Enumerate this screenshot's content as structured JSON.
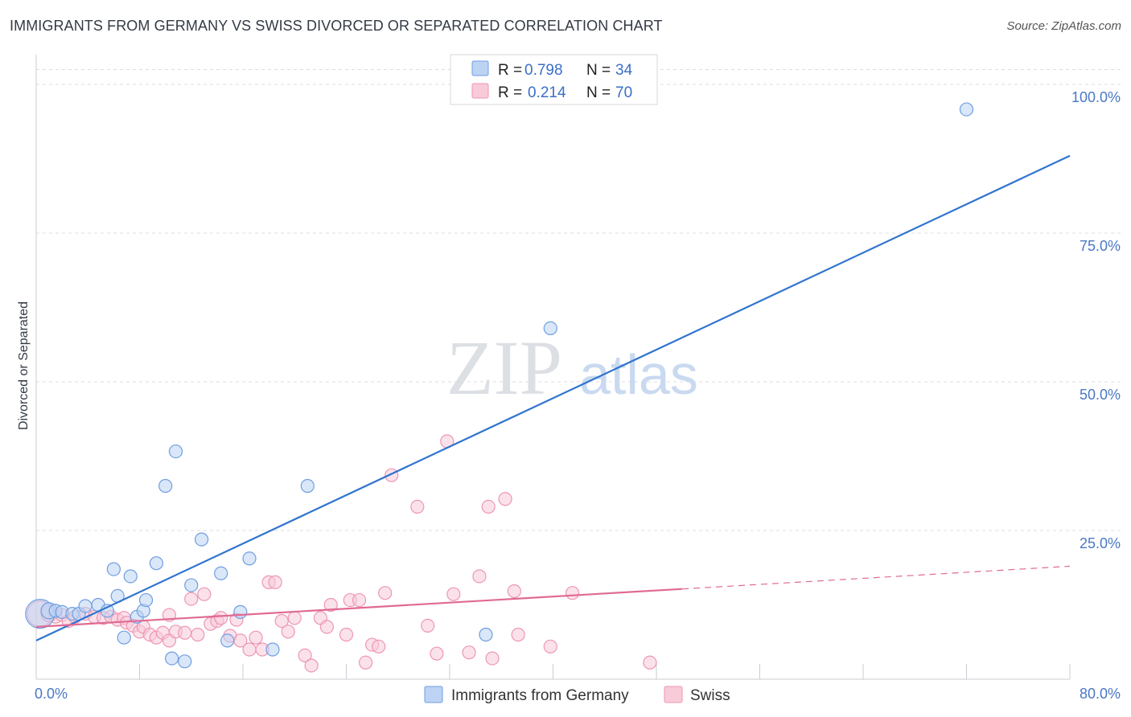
{
  "title": "IMMIGRANTS FROM GERMANY VS SWISS DIVORCED OR SEPARATED CORRELATION CHART",
  "source": "Source: ZipAtlas.com",
  "watermark": {
    "zip": "ZIP",
    "atlas": "atlas"
  },
  "colors": {
    "germany": "#6f9ee0",
    "germany_fill": "#bcd3f4",
    "germany_line": "#2f74d0",
    "swiss": "#ee96b2",
    "swiss_fill": "#f8cbd9",
    "swiss_line": "#e06a92",
    "grid": "#d9dde3",
    "tick_text": "#4a78c4"
  },
  "legend": {
    "r_label": "R =",
    "n_label": "N =",
    "germany": {
      "r": "0.798",
      "n": "34"
    },
    "swiss": {
      "r": "0.214",
      "n": "70"
    }
  },
  "chart_data": {
    "type": "scatter",
    "title": "IMMIGRANTS FROM GERMANY VS SWISS DIVORCED OR SEPARATED CORRELATION CHART",
    "xlabel": "",
    "ylabel": "Divorced or Separated",
    "xlim": [
      0,
      80
    ],
    "ylim": [
      0,
      105
    ],
    "x_tick_labels": [
      "0.0%",
      "80.0%"
    ],
    "y_ticks": [
      25,
      50,
      75,
      100
    ],
    "y_tick_labels": [
      "25.0%",
      "50.0%",
      "75.0%",
      "100.0%"
    ],
    "grid": true,
    "legend_position": "top-center",
    "series": [
      {
        "name": "Immigrants from Germany",
        "r": 0.798,
        "n": 34,
        "trend": {
          "x0": 0,
          "y0": 6.5,
          "x1": 80,
          "y1": 88.0,
          "dashed_from": null
        },
        "points": [
          [
            0.3,
            11.0,
            18
          ],
          [
            1.0,
            11.5,
            10
          ],
          [
            1.5,
            11.5,
            8
          ],
          [
            2.0,
            11.3,
            8
          ],
          [
            2.8,
            11.0,
            8
          ],
          [
            3.3,
            11.0,
            8
          ],
          [
            3.8,
            12.3,
            8
          ],
          [
            4.8,
            12.5,
            8
          ],
          [
            5.5,
            11.5,
            8
          ],
          [
            6.0,
            18.5,
            8
          ],
          [
            6.3,
            14.0,
            8
          ],
          [
            6.8,
            7.0,
            8
          ],
          [
            7.3,
            17.3,
            8
          ],
          [
            7.8,
            10.5,
            8
          ],
          [
            8.3,
            11.5,
            8
          ],
          [
            8.5,
            13.3,
            8
          ],
          [
            9.3,
            19.5,
            8
          ],
          [
            10.0,
            32.5,
            8
          ],
          [
            10.5,
            3.5,
            8
          ],
          [
            10.8,
            38.3,
            8
          ],
          [
            11.5,
            3.0,
            8
          ],
          [
            12.0,
            15.8,
            8
          ],
          [
            12.8,
            23.5,
            8
          ],
          [
            14.3,
            17.8,
            8
          ],
          [
            14.8,
            6.5,
            8
          ],
          [
            15.8,
            11.3,
            8
          ],
          [
            16.5,
            20.3,
            8
          ],
          [
            18.3,
            5.0,
            8
          ],
          [
            21.0,
            32.5,
            8
          ],
          [
            34.8,
            7.5,
            8
          ],
          [
            39.8,
            59.0,
            8
          ],
          [
            72.0,
            95.8,
            8
          ]
        ]
      },
      {
        "name": "Swiss",
        "r": 0.214,
        "n": 70,
        "trend": {
          "x0": 0,
          "y0": 8.8,
          "x1": 80,
          "y1": 19.0,
          "solid_to": 50
        },
        "points": [
          [
            0.3,
            11.0,
            16
          ],
          [
            1.0,
            11.0,
            10
          ],
          [
            1.5,
            10.5,
            8
          ],
          [
            2.0,
            10.8,
            8
          ],
          [
            2.5,
            9.8,
            8
          ],
          [
            3.0,
            10.5,
            8
          ],
          [
            3.8,
            11.0,
            8
          ],
          [
            4.5,
            10.5,
            8
          ],
          [
            5.2,
            10.3,
            8
          ],
          [
            5.8,
            10.5,
            8
          ],
          [
            6.3,
            10.0,
            8
          ],
          [
            6.8,
            10.3,
            8
          ],
          [
            7.0,
            9.5,
            8
          ],
          [
            7.5,
            9.0,
            8
          ],
          [
            8.0,
            8.0,
            8
          ],
          [
            8.3,
            8.8,
            8
          ],
          [
            8.8,
            7.5,
            8
          ],
          [
            9.3,
            7.0,
            8
          ],
          [
            9.8,
            7.8,
            8
          ],
          [
            10.3,
            6.5,
            8
          ],
          [
            10.3,
            10.8,
            8
          ],
          [
            10.8,
            8.0,
            8
          ],
          [
            11.5,
            7.8,
            8
          ],
          [
            12.0,
            13.5,
            8
          ],
          [
            12.5,
            7.5,
            8
          ],
          [
            13.0,
            14.3,
            8
          ],
          [
            13.5,
            9.3,
            8
          ],
          [
            14.0,
            9.8,
            8
          ],
          [
            14.3,
            10.3,
            8
          ],
          [
            15.0,
            7.3,
            8
          ],
          [
            15.5,
            10.0,
            8
          ],
          [
            15.8,
            6.5,
            8
          ],
          [
            16.5,
            5.0,
            8
          ],
          [
            17.0,
            7.0,
            8
          ],
          [
            17.5,
            5.0,
            8
          ],
          [
            18.0,
            16.3,
            8
          ],
          [
            18.5,
            16.3,
            8
          ],
          [
            19.0,
            9.8,
            8
          ],
          [
            19.5,
            8.0,
            8
          ],
          [
            20.0,
            10.3,
            8
          ],
          [
            20.8,
            4.0,
            8
          ],
          [
            21.3,
            2.3,
            8
          ],
          [
            22.0,
            10.3,
            8
          ],
          [
            22.5,
            8.8,
            8
          ],
          [
            22.8,
            12.5,
            8
          ],
          [
            24.0,
            7.5,
            8
          ],
          [
            24.3,
            13.3,
            8
          ],
          [
            25.0,
            13.3,
            8
          ],
          [
            25.5,
            2.8,
            8
          ],
          [
            26.0,
            5.8,
            8
          ],
          [
            26.5,
            5.5,
            8
          ],
          [
            27.0,
            14.5,
            8
          ],
          [
            27.5,
            34.3,
            8
          ],
          [
            29.5,
            29.0,
            8
          ],
          [
            30.3,
            9.0,
            8
          ],
          [
            31.0,
            4.3,
            8
          ],
          [
            31.8,
            40.0,
            8
          ],
          [
            32.3,
            14.3,
            8
          ],
          [
            33.5,
            4.5,
            8
          ],
          [
            34.3,
            17.3,
            8
          ],
          [
            35.0,
            29.0,
            8
          ],
          [
            35.3,
            3.5,
            8
          ],
          [
            36.3,
            30.3,
            8
          ],
          [
            37.0,
            14.8,
            8
          ],
          [
            37.3,
            7.5,
            8
          ],
          [
            39.8,
            5.5,
            8
          ],
          [
            41.5,
            14.5,
            8
          ],
          [
            47.5,
            2.8,
            8
          ]
        ]
      }
    ]
  }
}
